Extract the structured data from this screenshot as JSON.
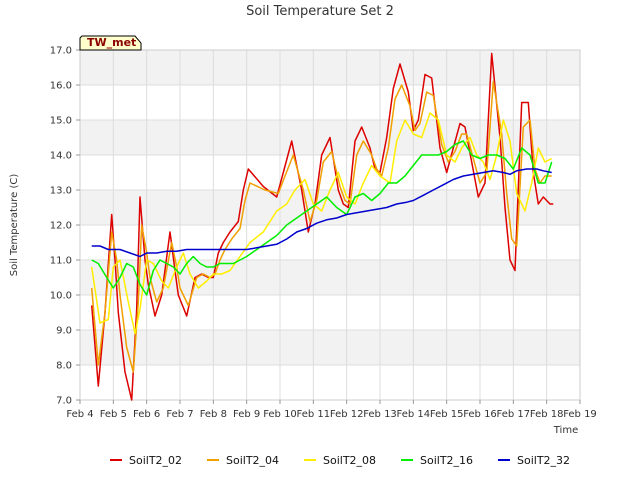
{
  "chart_data": {
    "type": "line",
    "title": "Soil Temperature Set 2",
    "xlabel": "Time",
    "ylabel": "Soil Temperature (C)",
    "ylim": [
      7.0,
      17.0
    ],
    "xlim": [
      4,
      19
    ],
    "grid": true,
    "legend_position": "bottom",
    "station_badge": "TW_met",
    "colors": {
      "background_band": "#f2f2f2",
      "grid": "#dddddd",
      "axis": "#cccccc",
      "badge_fill": "#ffffcc",
      "badge_border": "#000000"
    },
    "x_tick_labels": [
      {
        "value": 4,
        "label": "Feb 4"
      },
      {
        "value": 5,
        "label": "Feb 5"
      },
      {
        "value": 6,
        "label": "Feb 6"
      },
      {
        "value": 7,
        "label": "Feb 7"
      },
      {
        "value": 8,
        "label": "Feb 8"
      },
      {
        "value": 9,
        "label": "Feb 9"
      },
      {
        "value": 10,
        "label": "Feb 10"
      },
      {
        "value": 11,
        "label": "Feb 11"
      },
      {
        "value": 12,
        "label": "Feb 12"
      },
      {
        "value": 13,
        "label": "Feb 13"
      },
      {
        "value": 14,
        "label": "Feb 14"
      },
      {
        "value": 15,
        "label": "Feb 15"
      },
      {
        "value": 16,
        "label": "Feb 16"
      },
      {
        "value": 17,
        "label": "Feb 17"
      },
      {
        "value": 18,
        "label": "Feb 18"
      },
      {
        "value": 19,
        "label": "Feb 19"
      }
    ],
    "y_tick_labels": [
      {
        "value": 7,
        "label": "7.0"
      },
      {
        "value": 8,
        "label": "8.0"
      },
      {
        "value": 9,
        "label": "9.0"
      },
      {
        "value": 10,
        "label": "10.0"
      },
      {
        "value": 11,
        "label": "11.0"
      },
      {
        "value": 12,
        "label": "12.0"
      },
      {
        "value": 13,
        "label": "13.0"
      },
      {
        "value": 14,
        "label": "14.0"
      },
      {
        "value": 15,
        "label": "15.0"
      },
      {
        "value": 16,
        "label": "16.0"
      },
      {
        "value": 17,
        "label": "17.0"
      }
    ],
    "series": [
      {
        "name": "SoilT2_02",
        "color": "#dd0000",
        "x": [
          4.35,
          4.55,
          4.75,
          4.95,
          5.05,
          5.15,
          5.35,
          5.55,
          5.7,
          5.8,
          5.95,
          6.05,
          6.25,
          6.45,
          6.7,
          6.85,
          6.95,
          7.2,
          7.45,
          7.65,
          7.85,
          8.0,
          8.15,
          8.3,
          8.5,
          8.75,
          8.9,
          9.05,
          9.5,
          9.9,
          10.1,
          10.35,
          10.65,
          10.85,
          11.05,
          11.25,
          11.5,
          11.75,
          11.9,
          12.05,
          12.25,
          12.45,
          12.7,
          12.85,
          13.0,
          13.2,
          13.4,
          13.6,
          13.85,
          14.0,
          14.15,
          14.35,
          14.55,
          14.8,
          15.0,
          15.2,
          15.4,
          15.55,
          15.75,
          15.95,
          16.15,
          16.35,
          16.6,
          16.75,
          16.9,
          17.05,
          17.25,
          17.45,
          17.6,
          17.75,
          17.9,
          18.1,
          18.2
        ],
        "y": [
          9.7,
          7.4,
          9.5,
          12.3,
          11.0,
          9.5,
          7.8,
          7.0,
          9.6,
          12.8,
          11.0,
          10.3,
          9.4,
          10.0,
          11.8,
          10.7,
          10.0,
          9.4,
          10.5,
          10.6,
          10.5,
          10.5,
          11.2,
          11.5,
          11.8,
          12.1,
          13.0,
          13.6,
          13.1,
          12.8,
          13.5,
          14.4,
          13.0,
          11.8,
          12.6,
          14.0,
          14.5,
          13.0,
          12.6,
          12.5,
          14.4,
          14.8,
          14.2,
          13.6,
          13.5,
          14.5,
          15.9,
          16.6,
          15.8,
          14.7,
          15.0,
          16.3,
          16.2,
          14.2,
          13.5,
          14.2,
          14.9,
          14.8,
          13.8,
          12.8,
          13.2,
          16.9,
          14.5,
          12.5,
          11.0,
          10.7,
          15.5,
          15.5,
          13.5,
          12.6,
          12.8,
          12.6,
          12.6
        ]
      },
      {
        "name": "SoilT2_04",
        "color": "#f0a000",
        "x": [
          4.35,
          4.55,
          4.75,
          4.95,
          5.1,
          5.2,
          5.4,
          5.6,
          5.75,
          5.85,
          6.0,
          6.1,
          6.3,
          6.5,
          6.75,
          6.9,
          7.0,
          7.25,
          7.5,
          7.7,
          7.9,
          8.05,
          8.2,
          8.35,
          8.55,
          8.8,
          8.95,
          9.1,
          9.55,
          9.95,
          10.15,
          10.4,
          10.7,
          10.9,
          11.1,
          11.3,
          11.55,
          11.8,
          11.95,
          12.1,
          12.3,
          12.5,
          12.75,
          12.9,
          13.05,
          13.25,
          13.45,
          13.65,
          13.9,
          14.05,
          14.2,
          14.4,
          14.6,
          14.85,
          15.05,
          15.25,
          15.45,
          15.6,
          15.8,
          16.0,
          16.2,
          16.4,
          16.65,
          16.8,
          16.95,
          17.1,
          17.3,
          17.5,
          17.65,
          17.8,
          17.95,
          18.15
        ],
        "y": [
          10.2,
          8.0,
          9.5,
          11.8,
          11.0,
          10.0,
          8.5,
          7.8,
          9.8,
          12.0,
          11.2,
          10.5,
          9.8,
          10.2,
          11.5,
          10.8,
          10.2,
          9.7,
          10.5,
          10.6,
          10.5,
          10.6,
          11.0,
          11.3,
          11.6,
          11.9,
          12.7,
          13.2,
          13.0,
          12.9,
          13.4,
          14.0,
          13.0,
          12.1,
          12.7,
          13.8,
          14.1,
          13.1,
          12.7,
          12.6,
          14.0,
          14.4,
          14.0,
          13.6,
          13.4,
          14.2,
          15.6,
          16.0,
          15.4,
          14.7,
          14.9,
          15.8,
          15.7,
          14.3,
          13.8,
          14.1,
          14.6,
          14.6,
          13.9,
          13.2,
          13.5,
          16.1,
          14.6,
          12.9,
          11.6,
          11.4,
          14.8,
          15.0,
          13.6,
          13.2,
          13.4,
          13.4
        ]
      },
      {
        "name": "SoilT2_08",
        "color": "#ffee00",
        "x": [
          4.35,
          4.6,
          4.85,
          5.0,
          5.2,
          5.45,
          5.65,
          5.8,
          6.0,
          6.2,
          6.45,
          6.65,
          6.9,
          7.1,
          7.3,
          7.55,
          7.8,
          8.0,
          8.25,
          8.5,
          8.8,
          9.1,
          9.5,
          9.9,
          10.2,
          10.45,
          10.75,
          11.0,
          11.25,
          11.5,
          11.75,
          12.0,
          12.25,
          12.5,
          12.75,
          13.0,
          13.3,
          13.5,
          13.75,
          14.0,
          14.25,
          14.5,
          14.75,
          15.0,
          15.25,
          15.45,
          15.7,
          15.9,
          16.1,
          16.3,
          16.5,
          16.7,
          16.9,
          17.1,
          17.35,
          17.55,
          17.75,
          17.95,
          18.15
        ],
        "y": [
          10.8,
          9.2,
          9.3,
          10.8,
          11.0,
          9.8,
          8.9,
          9.6,
          11.0,
          10.9,
          10.4,
          10.2,
          10.8,
          11.2,
          10.6,
          10.2,
          10.4,
          10.6,
          10.6,
          10.7,
          11.1,
          11.5,
          11.8,
          12.4,
          12.6,
          13.0,
          13.3,
          12.6,
          12.4,
          13.0,
          13.5,
          12.8,
          12.6,
          13.2,
          13.7,
          13.4,
          13.2,
          14.4,
          15.0,
          14.6,
          14.5,
          15.2,
          15.0,
          14.0,
          13.8,
          14.2,
          14.5,
          14.0,
          13.8,
          13.3,
          14.0,
          15.0,
          14.4,
          12.9,
          12.4,
          13.2,
          14.2,
          13.8,
          13.9
        ]
      },
      {
        "name": "SoilT2_16",
        "color": "#00ee00",
        "x": [
          4.35,
          4.55,
          4.8,
          5.0,
          5.2,
          5.4,
          5.6,
          5.8,
          6.0,
          6.2,
          6.4,
          6.6,
          6.8,
          7.0,
          7.2,
          7.4,
          7.6,
          7.8,
          8.0,
          8.2,
          8.4,
          8.6,
          8.8,
          9.0,
          9.3,
          9.6,
          9.9,
          10.2,
          10.5,
          10.8,
          11.1,
          11.4,
          11.7,
          12.0,
          12.25,
          12.5,
          12.75,
          13.0,
          13.25,
          13.5,
          13.75,
          14.0,
          14.25,
          14.5,
          14.75,
          15.0,
          15.25,
          15.5,
          15.75,
          16.0,
          16.25,
          16.5,
          16.75,
          17.0,
          17.25,
          17.5,
          17.75,
          17.95,
          18.15
        ],
        "y": [
          11.0,
          10.9,
          10.5,
          10.2,
          10.5,
          10.9,
          10.8,
          10.3,
          10.0,
          10.7,
          11.0,
          10.9,
          10.8,
          10.6,
          10.9,
          11.1,
          10.9,
          10.8,
          10.8,
          10.9,
          10.9,
          10.9,
          11.0,
          11.1,
          11.3,
          11.5,
          11.7,
          12.0,
          12.2,
          12.4,
          12.6,
          12.8,
          12.5,
          12.3,
          12.8,
          12.9,
          12.7,
          12.9,
          13.2,
          13.2,
          13.4,
          13.7,
          14.0,
          14.0,
          14.0,
          14.1,
          14.3,
          14.4,
          14.0,
          13.9,
          14.0,
          14.0,
          13.9,
          13.6,
          14.2,
          14.0,
          13.2,
          13.2,
          13.8
        ]
      },
      {
        "name": "SoilT2_32",
        "color": "#0000cc",
        "x": [
          4.35,
          4.6,
          4.85,
          5.0,
          5.2,
          5.5,
          5.8,
          6.0,
          6.3,
          6.6,
          6.9,
          7.2,
          7.5,
          7.8,
          8.1,
          8.4,
          8.7,
          9.0,
          9.3,
          9.6,
          9.9,
          10.2,
          10.5,
          10.8,
          11.1,
          11.4,
          11.7,
          12.0,
          12.3,
          12.6,
          12.9,
          13.2,
          13.5,
          13.8,
          14.0,
          14.3,
          14.6,
          14.9,
          15.2,
          15.5,
          15.8,
          16.1,
          16.4,
          16.7,
          16.9,
          17.1,
          17.4,
          17.7,
          17.9,
          18.15
        ],
        "y": [
          11.4,
          11.4,
          11.3,
          11.3,
          11.3,
          11.2,
          11.1,
          11.2,
          11.2,
          11.25,
          11.25,
          11.3,
          11.3,
          11.3,
          11.3,
          11.3,
          11.3,
          11.3,
          11.35,
          11.4,
          11.45,
          11.6,
          11.8,
          11.9,
          12.05,
          12.15,
          12.2,
          12.3,
          12.35,
          12.4,
          12.45,
          12.5,
          12.6,
          12.65,
          12.7,
          12.85,
          13.0,
          13.15,
          13.3,
          13.4,
          13.45,
          13.5,
          13.55,
          13.5,
          13.45,
          13.55,
          13.6,
          13.6,
          13.55,
          13.5
        ]
      }
    ]
  }
}
